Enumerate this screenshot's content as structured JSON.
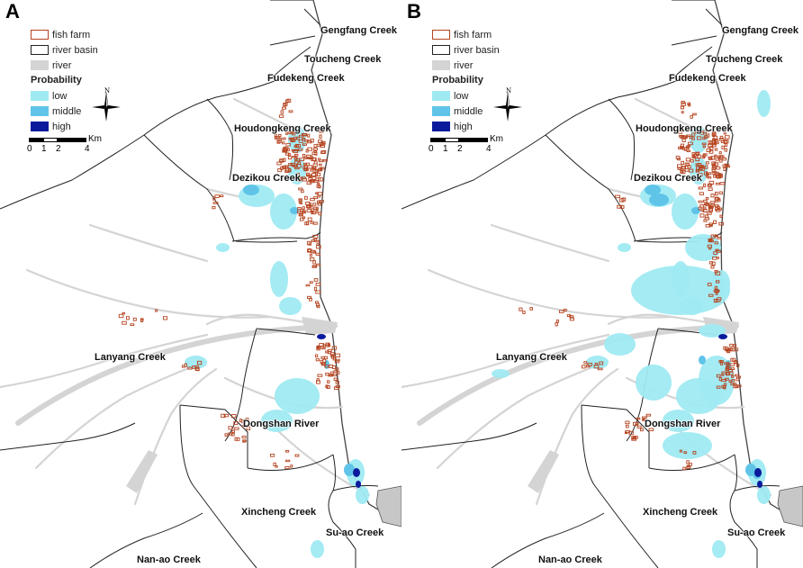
{
  "panels": [
    {
      "letter": "A"
    },
    {
      "letter": "B"
    }
  ],
  "legend": {
    "items": [
      {
        "label": "fish farm",
        "color": "#b5431f",
        "style": "outline"
      },
      {
        "label": "river basin",
        "color": "#222222",
        "style": "outline"
      },
      {
        "label": "river",
        "color": "#d4d4d4",
        "style": "fill"
      }
    ],
    "probability_title": "Probability",
    "probability": [
      {
        "label": "low",
        "color": "#9feaf2"
      },
      {
        "label": "middle",
        "color": "#5fc4e8"
      },
      {
        "label": "high",
        "color": "#0a1a9c"
      }
    ]
  },
  "scale": {
    "unit": "Km",
    "ticks": [
      "0",
      "1",
      "2",
      "4"
    ]
  },
  "north_label": "N",
  "places": {
    "gengfang": "Gengfang Creek",
    "toucheng": "Toucheng Creek",
    "fudekeng": "Fudekeng Creek",
    "houdongkeng": "Houdongkeng Creek",
    "dezikou": "Dezikou Creek",
    "lanyang": "Lanyang Creek",
    "dongshan": "Dongshan River",
    "xincheng": "Xincheng Creek",
    "suao": "Su-ao Creek",
    "nanao": "Nan-ao Creek"
  }
}
